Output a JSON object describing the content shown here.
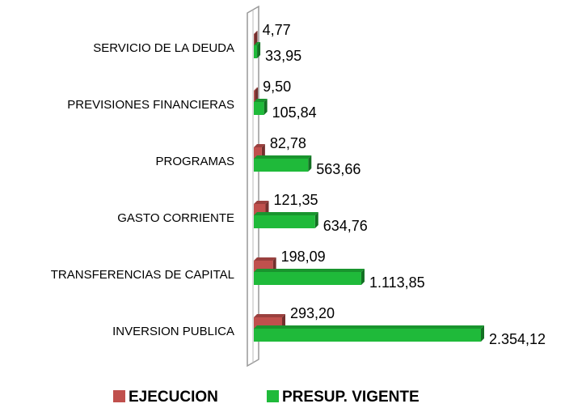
{
  "chart_data": {
    "type": "bar",
    "orientation": "horizontal",
    "categories": [
      "SERVICIO DE LA DEUDA",
      "PREVISIONES FINANCIERAS",
      "PROGRAMAS",
      "GASTO CORRIENTE",
      "TRANSFERENCIAS DE CAPITAL",
      "INVERSION PUBLICA"
    ],
    "series": [
      {
        "name": "EJECUCION",
        "color": "#c0504d",
        "values": [
          4.77,
          9.5,
          82.78,
          121.35,
          198.09,
          293.2
        ],
        "value_labels": [
          "4,77",
          "9,50",
          "82,78",
          "121,35",
          "198,09",
          "293,20"
        ]
      },
      {
        "name": "PRESUP. VIGENTE",
        "color": "#1fba3a",
        "values": [
          33.95,
          105.84,
          563.66,
          634.76,
          1113.85,
          2354.12
        ],
        "value_labels": [
          "33,95",
          "105,84",
          "563,66",
          "634,76",
          "1.113,85",
          "2.354,12"
        ]
      }
    ],
    "legend": "bottom"
  }
}
